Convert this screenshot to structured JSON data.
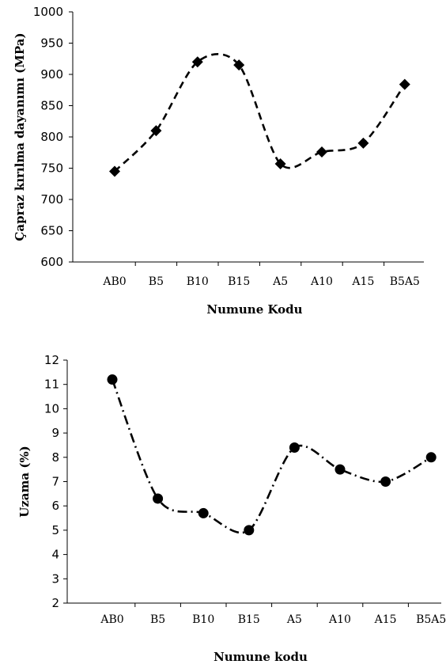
{
  "chart_data": [
    {
      "type": "line",
      "title": "",
      "xlabel": "Numune Kodu",
      "ylabel": "Çapraz kırılma dayanımı (MPa)",
      "categories": [
        "AB0",
        "B5",
        "B10",
        "B15",
        "A5",
        "A10",
        "A15",
        "B5A5"
      ],
      "series": [
        {
          "values": [
            745,
            810,
            920,
            915,
            757,
            776,
            790,
            884
          ]
        }
      ],
      "ylim": [
        600,
        1000
      ],
      "yticks": [
        600,
        650,
        700,
        750,
        800,
        850,
        900,
        950,
        1000
      ],
      "marker": "diamond",
      "line_style": "dashed-smooth",
      "grid": false,
      "legend": "none"
    },
    {
      "type": "line",
      "title": "",
      "xlabel": "Numune kodu",
      "ylabel": "Uzama (%)",
      "categories": [
        "AB0",
        "B5",
        "B10",
        "B15",
        "A5",
        "A10",
        "A15",
        "B5A5"
      ],
      "series": [
        {
          "values": [
            11.2,
            6.3,
            5.7,
            5.0,
            8.4,
            7.5,
            7.0,
            8.0
          ]
        }
      ],
      "ylim": [
        2,
        12
      ],
      "yticks": [
        2,
        3,
        4,
        5,
        6,
        7,
        8,
        9,
        10,
        11,
        12
      ],
      "marker": "circle",
      "line_style": "dash-dot-smooth",
      "grid": false,
      "legend": "none"
    }
  ]
}
